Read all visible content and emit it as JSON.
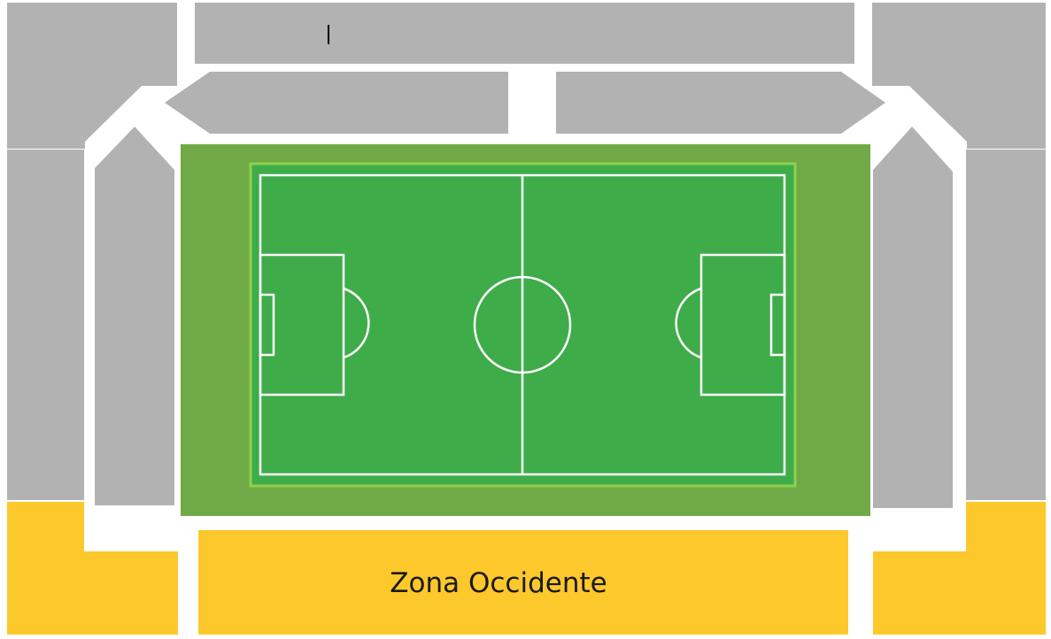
{
  "zones": {
    "occidente": {
      "label": "Zona Occidente",
      "status": "highlighted"
    }
  },
  "colors": {
    "available": "#fdc82b",
    "unavailable": "#b2b2b2",
    "pitch_outer": "#70aa46",
    "pitch_inner": "#3fac4a",
    "pitch_border": "#8fd14f",
    "lines": "#ffffff"
  },
  "icons": {
    "cursor": "text-cursor-icon"
  }
}
